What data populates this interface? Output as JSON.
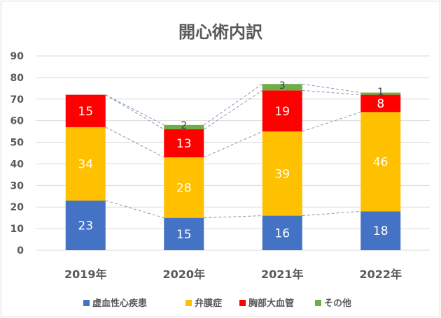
{
  "chart_data": {
    "type": "bar",
    "stacked": true,
    "title": "開心術内訳",
    "categories": [
      "2019年",
      "2020年",
      "2021年",
      "2022年"
    ],
    "series": [
      {
        "name": "虚血性心疾患",
        "color": "#4472C4",
        "values": [
          23,
          15,
          16,
          18
        ]
      },
      {
        "name": "弁膜症",
        "color": "#FFC000",
        "values": [
          34,
          28,
          39,
          46
        ]
      },
      {
        "name": "胸部大血管",
        "color": "#FF0000",
        "values": [
          15,
          13,
          19,
          8
        ]
      },
      {
        "name": "その他",
        "color": "#70AD47",
        "values": [
          0,
          2,
          3,
          1
        ]
      }
    ],
    "ylim": [
      0,
      90
    ],
    "yticks": [
      0,
      10,
      20,
      30,
      40,
      50,
      60,
      70,
      80,
      90
    ],
    "grid": true,
    "series_lines": true,
    "legend_position": "bottom",
    "data_labels": true
  }
}
